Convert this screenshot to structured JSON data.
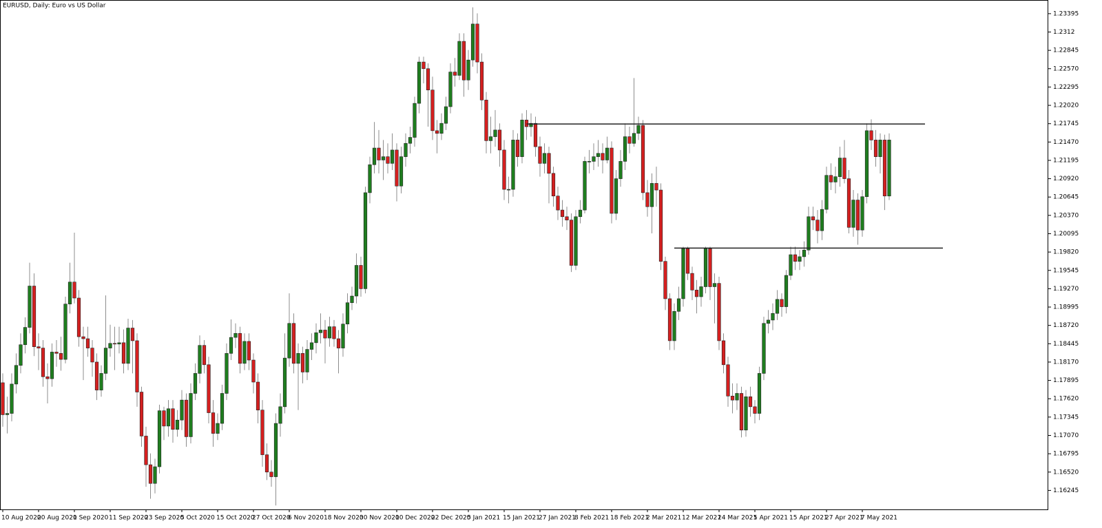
{
  "chart_data": {
    "type": "candlestick",
    "title": "EURUSD, Daily:  Euro vs US Dollar",
    "bull_color": "#1f7d1f",
    "bear_color": "#d42020",
    "wick_color": "#8c8c8c",
    "level_color": "#222222",
    "ylim": [
      1.1596,
      1.236
    ],
    "yticks": [
      1.23395,
      1.2312,
      1.22845,
      {
        "value": 1.2257,
        "label": "1.22570"
      },
      1.22295,
      {
        "value": 1.2202,
        "label": "1.22020"
      },
      1.21745,
      {
        "value": 1.2147,
        "label": "1.21470"
      },
      1.21195,
      {
        "value": 1.2092,
        "label": "1.20920"
      },
      1.20645,
      {
        "value": 1.2037,
        "label": "1.20370"
      },
      1.20095,
      {
        "value": 1.1982,
        "label": "1.19820"
      },
      1.19545,
      {
        "value": 1.1927,
        "label": "1.19270"
      },
      1.18995,
      {
        "value": 1.1872,
        "label": "1.18720"
      },
      1.18445,
      {
        "value": 1.1817,
        "label": "1.18170"
      },
      1.17895,
      {
        "value": 1.1762,
        "label": "1.17620"
      },
      1.17345,
      {
        "value": 1.1707,
        "label": "1.17070"
      },
      1.16795,
      {
        "value": 1.1652,
        "label": "1.16520"
      },
      1.16245
    ],
    "categories": [
      "10 Aug 2020",
      null,
      null,
      null,
      null,
      null,
      null,
      null,
      "20 Aug 2020",
      null,
      null,
      null,
      null,
      null,
      null,
      null,
      "1 Sep 2020",
      null,
      null,
      null,
      null,
      null,
      null,
      null,
      "11 Sep 2020",
      null,
      null,
      null,
      null,
      null,
      null,
      null,
      "23 Sep 2020",
      null,
      null,
      null,
      null,
      null,
      null,
      null,
      "5 Oct 2020",
      null,
      null,
      null,
      null,
      null,
      null,
      null,
      "15 Oct 2020",
      null,
      null,
      null,
      null,
      null,
      null,
      null,
      "27 Oct 2020",
      null,
      null,
      null,
      null,
      null,
      null,
      null,
      "6 Nov 2020",
      null,
      null,
      null,
      null,
      null,
      null,
      null,
      "18 Nov 2020",
      null,
      null,
      null,
      null,
      null,
      null,
      null,
      "30 Nov 2020",
      null,
      null,
      null,
      null,
      null,
      null,
      null,
      "10 Dec 2020",
      null,
      null,
      null,
      null,
      null,
      null,
      null,
      "22 Dec 2020",
      null,
      null,
      null,
      null,
      null,
      null,
      null,
      "5 Jan 2021",
      null,
      null,
      null,
      null,
      null,
      null,
      null,
      "15 Jan 2021",
      null,
      null,
      null,
      null,
      null,
      null,
      null,
      "27 Jan 2021",
      null,
      null,
      null,
      null,
      null,
      null,
      null,
      "8 Feb 2021",
      null,
      null,
      null,
      null,
      null,
      null,
      null,
      "18 Feb 2021",
      null,
      null,
      null,
      null,
      null,
      null,
      null,
      "2 Mar 2021",
      null,
      null,
      null,
      null,
      null,
      null,
      null,
      "12 Mar 2021",
      null,
      null,
      null,
      null,
      null,
      null,
      null,
      "24 Mar 2021",
      null,
      null,
      null,
      null,
      null,
      null,
      null,
      "5 Apr 2021",
      null,
      null,
      null,
      null,
      null,
      null,
      null,
      "15 Apr 2021",
      null,
      null,
      null,
      null,
      null,
      null,
      null,
      "27 Apr 2021",
      null,
      null,
      null,
      null,
      null,
      null,
      null,
      "7 May 2021",
      null,
      null,
      null,
      null,
      null,
      null
    ],
    "ohlc": [
      [
        1.1786,
        1.18,
        1.172,
        1.1738
      ],
      [
        1.1738,
        1.1765,
        1.171,
        1.174
      ],
      [
        1.174,
        1.18,
        1.1728,
        1.1784
      ],
      [
        1.1784,
        1.183,
        1.177,
        1.1812
      ],
      [
        1.1812,
        1.186,
        1.18,
        1.1843
      ],
      [
        1.1843,
        1.1884,
        1.183,
        1.1869
      ],
      [
        1.1869,
        1.1966,
        1.186,
        1.1931
      ],
      [
        1.1931,
        1.195,
        1.1826,
        1.184
      ],
      [
        1.184,
        1.186,
        1.1805,
        1.1838
      ],
      [
        1.1838,
        1.185,
        1.178,
        1.1795
      ],
      [
        1.1795,
        1.1815,
        1.1755,
        1.1792
      ],
      [
        1.1792,
        1.1845,
        1.178,
        1.1832
      ],
      [
        1.1832,
        1.185,
        1.181,
        1.183
      ],
      [
        1.183,
        1.1855,
        1.1804,
        1.1821
      ],
      [
        1.1821,
        1.1915,
        1.1815,
        1.1904
      ],
      [
        1.1904,
        1.1966,
        1.189,
        1.1937
      ],
      [
        1.1937,
        1.2011,
        1.1905,
        1.1913
      ],
      [
        1.1913,
        1.1925,
        1.184,
        1.1855
      ],
      [
        1.1855,
        1.187,
        1.179,
        1.1852
      ],
      [
        1.1852,
        1.187,
        1.1825,
        1.1838
      ],
      [
        1.1838,
        1.185,
        1.1795,
        1.1817
      ],
      [
        1.1817,
        1.183,
        1.176,
        1.1775
      ],
      [
        1.1775,
        1.1812,
        1.1765,
        1.18
      ],
      [
        1.18,
        1.1917,
        1.179,
        1.1838
      ],
      [
        1.1838,
        1.1873,
        1.1825,
        1.1845
      ],
      [
        1.1845,
        1.187,
        1.1805,
        1.1844
      ],
      [
        1.1844,
        1.187,
        1.183,
        1.1846
      ],
      [
        1.1846,
        1.1866,
        1.18,
        1.1815
      ],
      [
        1.1815,
        1.1882,
        1.1805,
        1.1868
      ],
      [
        1.1868,
        1.188,
        1.18,
        1.1849
      ],
      [
        1.1849,
        1.186,
        1.175,
        1.1772
      ],
      [
        1.1772,
        1.178,
        1.169,
        1.1706
      ],
      [
        1.1706,
        1.172,
        1.163,
        1.1663
      ],
      [
        1.1663,
        1.168,
        1.1612,
        1.1635
      ],
      [
        1.1635,
        1.1672,
        1.162,
        1.166
      ],
      [
        1.166,
        1.1753,
        1.165,
        1.1744
      ],
      [
        1.1744,
        1.175,
        1.17,
        1.1721
      ],
      [
        1.1721,
        1.176,
        1.1705,
        1.1747
      ],
      [
        1.1747,
        1.176,
        1.1696,
        1.1716
      ],
      [
        1.1716,
        1.1745,
        1.1705,
        1.173
      ],
      [
        1.173,
        1.1775,
        1.1715,
        1.176
      ],
      [
        1.176,
        1.177,
        1.169,
        1.1705
      ],
      [
        1.1705,
        1.1785,
        1.1695,
        1.177
      ],
      [
        1.177,
        1.1815,
        1.176,
        1.18
      ],
      [
        1.18,
        1.1857,
        1.1785,
        1.1842
      ],
      [
        1.1842,
        1.185,
        1.18,
        1.1813
      ],
      [
        1.1813,
        1.1825,
        1.1725,
        1.1741
      ],
      [
        1.1741,
        1.176,
        1.169,
        1.171
      ],
      [
        1.171,
        1.174,
        1.17,
        1.1725
      ],
      [
        1.1725,
        1.1783,
        1.1715,
        1.177
      ],
      [
        1.177,
        1.1845,
        1.176,
        1.183
      ],
      [
        1.183,
        1.1881,
        1.182,
        1.1854
      ],
      [
        1.1854,
        1.1875,
        1.1838,
        1.186
      ],
      [
        1.186,
        1.187,
        1.18,
        1.1815
      ],
      [
        1.1815,
        1.186,
        1.1805,
        1.1848
      ],
      [
        1.1848,
        1.186,
        1.1805,
        1.182
      ],
      [
        1.182,
        1.183,
        1.177,
        1.1787
      ],
      [
        1.1787,
        1.18,
        1.1725,
        1.1745
      ],
      [
        1.1745,
        1.176,
        1.166,
        1.1678
      ],
      [
        1.1678,
        1.1695,
        1.164,
        1.1652
      ],
      [
        1.1652,
        1.167,
        1.163,
        1.1645
      ],
      [
        1.1645,
        1.174,
        1.1602,
        1.1725
      ],
      [
        1.1725,
        1.177,
        1.1705,
        1.175
      ],
      [
        1.175,
        1.186,
        1.174,
        1.1823
      ],
      [
        1.1823,
        1.192,
        1.181,
        1.1875
      ],
      [
        1.1875,
        1.189,
        1.18,
        1.1815
      ],
      [
        1.1815,
        1.1845,
        1.1745,
        1.183
      ],
      [
        1.183,
        1.184,
        1.1785,
        1.1802
      ],
      [
        1.1802,
        1.185,
        1.179,
        1.1836
      ],
      [
        1.1836,
        1.186,
        1.182,
        1.1846
      ],
      [
        1.1846,
        1.1875,
        1.183,
        1.1861
      ],
      [
        1.1861,
        1.189,
        1.1845,
        1.1865
      ],
      [
        1.1865,
        1.188,
        1.1815,
        1.1853
      ],
      [
        1.1853,
        1.1885,
        1.184,
        1.187
      ],
      [
        1.187,
        1.188,
        1.184,
        1.1852
      ],
      [
        1.1852,
        1.1865,
        1.18,
        1.1838
      ],
      [
        1.1838,
        1.189,
        1.1825,
        1.1874
      ],
      [
        1.1874,
        1.192,
        1.186,
        1.1906
      ],
      [
        1.1906,
        1.193,
        1.1895,
        1.1916
      ],
      [
        1.1916,
        1.198,
        1.1905,
        1.1962
      ],
      [
        1.1962,
        1.1975,
        1.1915,
        1.1927
      ],
      [
        1.1927,
        1.208,
        1.192,
        1.2071
      ],
      [
        1.2071,
        1.2125,
        1.2055,
        1.2113
      ],
      [
        1.2113,
        1.2177,
        1.21,
        1.2138
      ],
      [
        1.2138,
        1.2165,
        1.21,
        1.212
      ],
      [
        1.212,
        1.215,
        1.209,
        1.2125
      ],
      [
        1.2125,
        1.2145,
        1.21,
        1.2115
      ],
      [
        1.2115,
        1.216,
        1.2105,
        1.2135
      ],
      [
        1.2135,
        1.2145,
        1.2058,
        1.2081
      ],
      [
        1.2081,
        1.214,
        1.207,
        1.2125
      ],
      [
        1.2125,
        1.216,
        1.211,
        1.2145
      ],
      [
        1.2145,
        1.217,
        1.213,
        1.2154
      ],
      [
        1.2154,
        1.2215,
        1.214,
        1.2205
      ],
      [
        1.2205,
        1.2275,
        1.219,
        1.2267
      ],
      [
        1.2267,
        1.2275,
        1.2235,
        1.2257
      ],
      [
        1.2257,
        1.2265,
        1.217,
        1.2225
      ],
      [
        1.2225,
        1.2245,
        1.215,
        1.2164
      ],
      [
        1.2164,
        1.218,
        1.213,
        1.216
      ],
      [
        1.216,
        1.219,
        1.215,
        1.2175
      ],
      [
        1.2175,
        1.2215,
        1.2165,
        1.22
      ],
      [
        1.22,
        1.2265,
        1.219,
        1.2252
      ],
      [
        1.2252,
        1.2273,
        1.223,
        1.2247
      ],
      [
        1.2247,
        1.231,
        1.224,
        1.2298
      ],
      [
        1.2298,
        1.231,
        1.2215,
        1.224
      ],
      [
        1.224,
        1.2285,
        1.2225,
        1.227
      ],
      [
        1.227,
        1.2349,
        1.226,
        1.2324
      ],
      [
        1.2324,
        1.234,
        1.225,
        1.2267
      ],
      [
        1.2267,
        1.228,
        1.2195,
        1.221
      ],
      [
        1.221,
        1.2222,
        1.213,
        1.2149
      ],
      [
        1.2149,
        1.2185,
        1.213,
        1.2155
      ],
      [
        1.2155,
        1.2195,
        1.214,
        1.2165
      ],
      [
        1.2165,
        1.2175,
        1.211,
        1.2135
      ],
      [
        1.2135,
        1.215,
        1.206,
        1.2076
      ],
      [
        1.2076,
        1.2095,
        1.2055,
        1.2076
      ],
      [
        1.2076,
        1.2165,
        1.2065,
        1.215
      ],
      [
        1.215,
        1.216,
        1.211,
        1.2125
      ],
      [
        1.2125,
        1.219,
        1.2115,
        1.218
      ],
      [
        1.218,
        1.2195,
        1.215,
        1.217
      ],
      [
        1.217,
        1.219,
        1.2155,
        1.2175
      ],
      [
        1.2175,
        1.2185,
        1.2125,
        1.214
      ],
      [
        1.214,
        1.2155,
        1.2095,
        1.2115
      ],
      [
        1.2115,
        1.2145,
        1.21,
        1.213
      ],
      [
        1.213,
        1.214,
        1.2055,
        1.21
      ],
      [
        1.21,
        1.211,
        1.205,
        1.2066
      ],
      [
        1.2066,
        1.208,
        1.203,
        1.2045
      ],
      [
        1.2045,
        1.206,
        1.202,
        1.2035
      ],
      [
        1.2035,
        1.205,
        1.2015,
        1.203
      ],
      [
        1.203,
        1.204,
        1.1952,
        1.1962
      ],
      [
        1.1962,
        1.2045,
        1.1955,
        1.2035
      ],
      [
        1.2035,
        1.206,
        1.2025,
        1.2045
      ],
      [
        1.2045,
        1.2125,
        1.204,
        1.2118
      ],
      [
        1.2118,
        1.2135,
        1.21,
        1.2118
      ],
      [
        1.2118,
        1.2145,
        1.2105,
        1.2125
      ],
      [
        1.2125,
        1.215,
        1.211,
        1.213
      ],
      [
        1.213,
        1.2145,
        1.21,
        1.212
      ],
      [
        1.212,
        1.2155,
        1.2115,
        1.2138
      ],
      [
        1.2138,
        1.2148,
        1.2025,
        1.204
      ],
      [
        1.204,
        1.2105,
        1.203,
        1.2092
      ],
      [
        1.2092,
        1.2135,
        1.208,
        1.2118
      ],
      [
        1.2118,
        1.2175,
        1.2105,
        1.2155
      ],
      [
        1.2155,
        1.217,
        1.213,
        1.2145
      ],
      [
        1.2145,
        1.2243,
        1.214,
        1.216
      ],
      [
        1.216,
        1.2185,
        1.215,
        1.2172
      ],
      [
        1.2172,
        1.218,
        1.206,
        1.2071
      ],
      [
        1.2071,
        1.209,
        1.2035,
        1.205
      ],
      [
        1.205,
        1.21,
        1.201,
        1.2085
      ],
      [
        1.2085,
        1.211,
        1.205,
        1.2075
      ],
      [
        1.2075,
        1.2085,
        1.1955,
        1.1968
      ],
      [
        1.1968,
        1.1975,
        1.1895,
        1.1912
      ],
      [
        1.1912,
        1.192,
        1.1835,
        1.1849
      ],
      [
        1.1849,
        1.1905,
        1.1835,
        1.1893
      ],
      [
        1.1893,
        1.193,
        1.188,
        1.1912
      ],
      [
        1.1912,
        1.199,
        1.19,
        1.1987
      ],
      [
        1.1987,
        1.199,
        1.194,
        1.195
      ],
      [
        1.195,
        1.196,
        1.191,
        1.1925
      ],
      [
        1.1925,
        1.194,
        1.189,
        1.1915
      ],
      [
        1.1915,
        1.1945,
        1.19,
        1.193
      ],
      [
        1.193,
        1.199,
        1.192,
        1.1987
      ],
      [
        1.1987,
        1.199,
        1.191,
        1.193
      ],
      [
        1.193,
        1.195,
        1.1875,
        1.1935
      ],
      [
        1.1935,
        1.1945,
        1.1835,
        1.1849
      ],
      [
        1.1849,
        1.186,
        1.18,
        1.1813
      ],
      [
        1.1813,
        1.1825,
        1.175,
        1.1766
      ],
      [
        1.1766,
        1.1785,
        1.174,
        1.176
      ],
      [
        1.176,
        1.1785,
        1.1745,
        1.177
      ],
      [
        1.177,
        1.178,
        1.1704,
        1.1715
      ],
      [
        1.1715,
        1.1775,
        1.1705,
        1.1765
      ],
      [
        1.1765,
        1.178,
        1.1735,
        1.175
      ],
      [
        1.175,
        1.176,
        1.1725,
        1.174
      ],
      [
        1.174,
        1.181,
        1.173,
        1.18
      ],
      [
        1.18,
        1.1885,
        1.179,
        1.1875
      ],
      [
        1.1875,
        1.1895,
        1.186,
        1.188
      ],
      [
        1.188,
        1.1905,
        1.1865,
        1.189
      ],
      [
        1.189,
        1.1925,
        1.188,
        1.1911
      ],
      [
        1.1911,
        1.192,
        1.1885,
        1.19
      ],
      [
        1.19,
        1.1955,
        1.189,
        1.1947
      ],
      [
        1.1947,
        1.199,
        1.194,
        1.1978
      ],
      [
        1.1978,
        1.199,
        1.1955,
        1.1968
      ],
      [
        1.1968,
        1.1985,
        1.1955,
        1.1975
      ],
      [
        1.1975,
        1.1998,
        1.196,
        1.1985
      ],
      [
        1.1985,
        1.205,
        1.1978,
        1.2035
      ],
      [
        1.2035,
        1.205,
        1.2015,
        1.203
      ],
      [
        1.203,
        1.2045,
        1.1995,
        1.2014
      ],
      [
        1.2014,
        1.206,
        1.2,
        1.2046
      ],
      [
        1.2046,
        1.211,
        1.204,
        1.2097
      ],
      [
        1.2097,
        1.2115,
        1.2075,
        1.2087
      ],
      [
        1.2087,
        1.211,
        1.207,
        1.2095
      ],
      [
        1.2095,
        1.214,
        1.208,
        1.2123
      ],
      [
        1.2123,
        1.215,
        1.2085,
        1.2092
      ],
      [
        1.2092,
        1.2105,
        1.201,
        1.2019
      ],
      [
        1.2019,
        1.2075,
        1.2005,
        1.206
      ],
      [
        1.206,
        1.207,
        1.1993,
        1.2015
      ],
      [
        1.2015,
        1.2075,
        1.2005,
        1.2065
      ],
      [
        1.2065,
        1.2175,
        1.2055,
        1.2164
      ],
      [
        1.2164,
        1.2181,
        1.2135,
        1.215
      ],
      [
        1.215,
        1.2165,
        1.211,
        1.2125
      ],
      [
        1.2125,
        1.216,
        1.21,
        1.215
      ],
      [
        1.215,
        1.2158,
        1.2045,
        1.2066
      ],
      [
        1.2066,
        1.216,
        1.206,
        1.215
      ]
    ],
    "levels": [
      {
        "value": 1.2174,
        "from": 117,
        "to": 206
      },
      {
        "value": 1.1988,
        "from": 150,
        "to": 210
      }
    ]
  }
}
